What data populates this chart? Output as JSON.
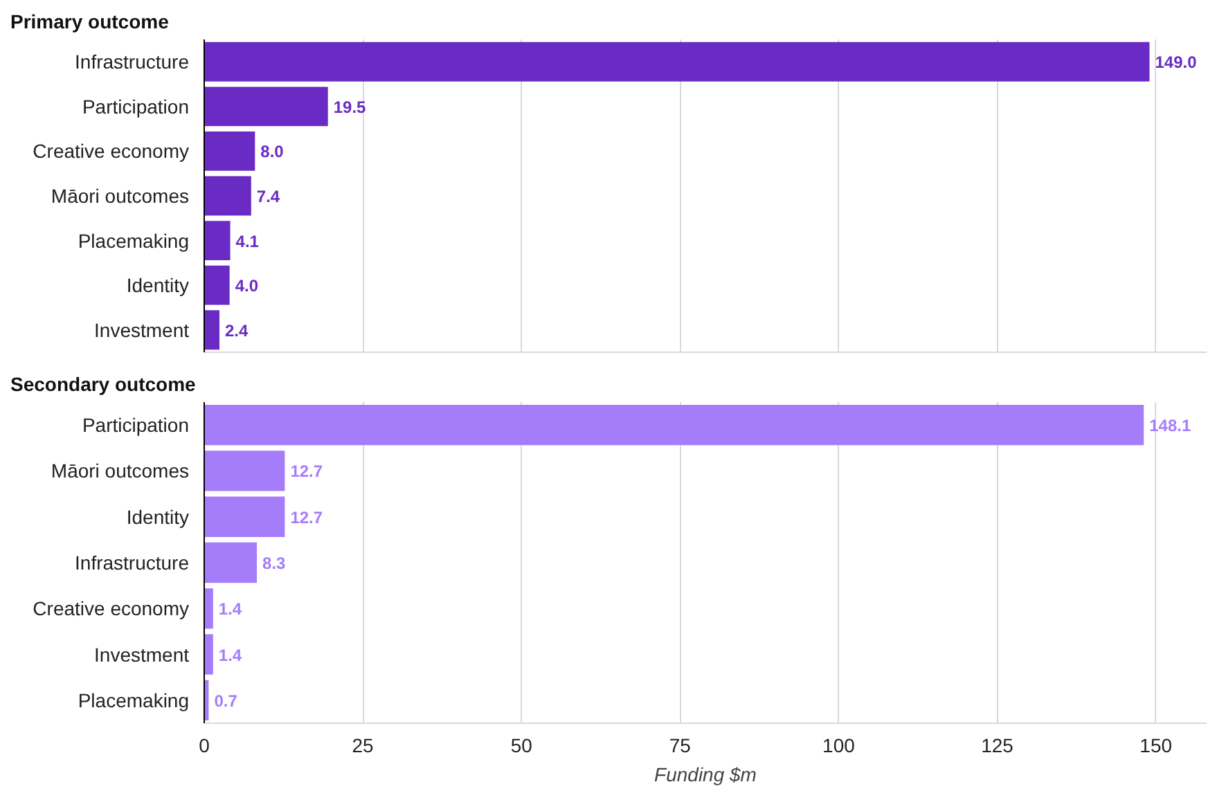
{
  "chart_data": [
    {
      "type": "bar",
      "orientation": "horizontal",
      "title": "Primary outcome",
      "categories": [
        "Infrastructure",
        "Participation",
        "Creative economy",
        "Māori outcomes",
        "Placemaking",
        "Identity",
        "Investment"
      ],
      "values": [
        149.0,
        19.5,
        8.0,
        7.4,
        4.1,
        4.0,
        2.4
      ],
      "value_labels": [
        "149.0",
        "19.5",
        "8.0",
        "7.4",
        "4.1",
        "4.0",
        "2.4"
      ],
      "color": "#6a2bc4",
      "xlim": [
        0,
        158
      ],
      "xticks": [
        0,
        25,
        50,
        75,
        100,
        125,
        150
      ],
      "grid": "x",
      "tick_labels": "y"
    },
    {
      "type": "bar",
      "orientation": "horizontal",
      "title": "Secondary outcome",
      "xlabel": "Funding $m",
      "categories": [
        "Participation",
        "Māori outcomes",
        "Identity",
        "Infrastructure",
        "Creative economy",
        "Investment",
        "Placemaking"
      ],
      "values": [
        148.1,
        12.7,
        12.7,
        8.3,
        1.4,
        1.4,
        0.7
      ],
      "value_labels": [
        "148.1",
        "12.7",
        "12.7",
        "8.3",
        "1.4",
        "1.4",
        "0.7"
      ],
      "color": "#a57dfb",
      "xlim": [
        0,
        158
      ],
      "xticks": [
        0,
        25,
        50,
        75,
        100,
        125,
        150
      ],
      "grid": "x"
    }
  ]
}
